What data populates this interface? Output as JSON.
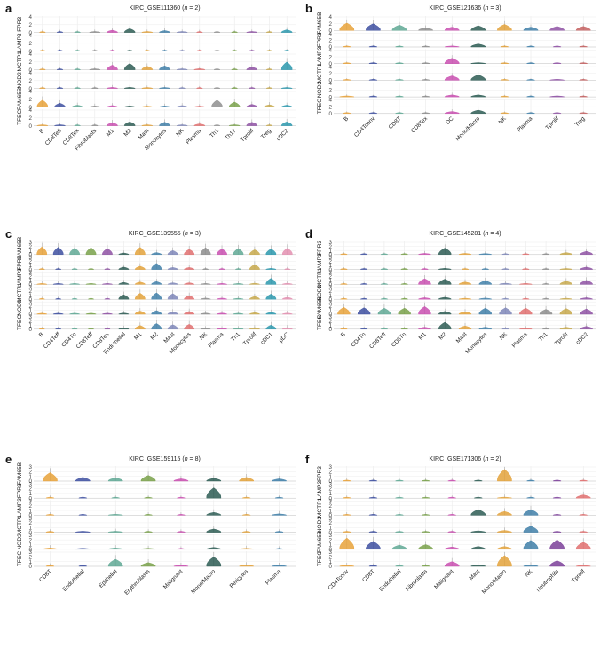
{
  "chart_data": [
    {
      "type": "violin",
      "letter": "a",
      "title": "KIRC_GSE111360 (",
      "n_label": "n",
      "n_value": " = 2)",
      "genes": [
        "FPR3",
        "LAMP3",
        "MCTP1",
        "NOD2",
        "FAM65B",
        "TFEC"
      ],
      "yticks": [
        [
          "0",
          "2",
          "4"
        ],
        [
          "0",
          "2",
          "4"
        ],
        [
          "0",
          "2",
          "4"
        ],
        [
          "0",
          "2",
          "4"
        ],
        [
          "0",
          "2",
          "4"
        ],
        [
          "0",
          "2",
          "4"
        ]
      ],
      "categories": [
        "B",
        "CD8Teff",
        "CD8Tex",
        "Fibroblasts",
        "M1",
        "M2",
        "Mast",
        "Monocytes",
        "NK",
        "Plasma",
        "Th1",
        "Th17",
        "Tprolif",
        "Treg",
        "cDC2"
      ],
      "colors": [
        "#e8a23a",
        "#3d4fa0",
        "#5fa894",
        "#8c8c8c",
        "#c94fb0",
        "#2d5c54",
        "#e3a23b",
        "#3f7fa8",
        "#7e86b8",
        "#e06f6f",
        "#8f8f8f",
        "#79a14a",
        "#8e51a3",
        "#c7a84b",
        "#2a98ad"
      ],
      "expr": [
        [
          0.15,
          0.15,
          0.1,
          0.2,
          0.6,
          1.0,
          0.2,
          0.5,
          0.2,
          0.15,
          0.1,
          0.1,
          0.2,
          0.1,
          0.7
        ],
        [
          0.05,
          0.05,
          0.05,
          0.05,
          0.05,
          0.05,
          0.05,
          0.05,
          0.05,
          0.05,
          0.05,
          0.05,
          0.05,
          0.05,
          0.05
        ],
        [
          0.1,
          0.1,
          0.1,
          0.2,
          1.2,
          1.6,
          0.9,
          1.0,
          0.2,
          0.3,
          0.1,
          0.1,
          0.7,
          0.1,
          2.0
        ],
        [
          0.05,
          0.05,
          0.05,
          0.1,
          0.3,
          0.3,
          0.2,
          0.2,
          0.1,
          0.1,
          0.05,
          0.05,
          0.1,
          0.05,
          0.2
        ],
        [
          1.8,
          1.0,
          0.5,
          0.3,
          0.4,
          0.3,
          0.2,
          0.3,
          0.4,
          0.2,
          1.8,
          1.3,
          0.7,
          0.6,
          0.5
        ],
        [
          0.2,
          0.2,
          0.1,
          0.1,
          0.8,
          1.0,
          0.2,
          0.9,
          0.2,
          0.5,
          0.1,
          0.2,
          0.9,
          0.1,
          1.0
        ]
      ]
    },
    {
      "type": "violin",
      "letter": "b",
      "title": "KIRC_GSE121636 (",
      "n_label": "n",
      "n_value": " = 3)",
      "genes": [
        "FAM65B",
        "FPR3",
        "LAMP3",
        "MCTP1",
        "NOD2",
        "TFEC"
      ],
      "yticks": [
        [
          "0",
          "2",
          "4"
        ],
        [
          "0",
          "2",
          "4"
        ],
        [
          "0",
          "2",
          "4"
        ],
        [
          "0",
          "2",
          "4"
        ],
        [
          "0",
          "2",
          "4"
        ],
        [
          "0",
          "2",
          "4"
        ]
      ],
      "categories": [
        "B",
        "CD4Tconv",
        "CD8T",
        "CD8Tex",
        "DC",
        "Mono/Macro",
        "NK",
        "Plasma",
        "Tprolif",
        "Treg"
      ],
      "colors": [
        "#e8a23a",
        "#3d4fa0",
        "#5fa894",
        "#8c8c8c",
        "#c94fb0",
        "#2d5c54",
        "#e3a23b",
        "#3f7fa8",
        "#8e51a3",
        "#c45f5f"
      ],
      "expr": [
        [
          2.2,
          2.0,
          1.6,
          0.8,
          1.0,
          1.4,
          1.8,
          1.0,
          1.2,
          1.2
        ],
        [
          0.05,
          0.05,
          0.05,
          0.05,
          0.3,
          0.9,
          0.05,
          0.05,
          0.05,
          0.05
        ],
        [
          0.1,
          0.1,
          0.1,
          0.1,
          1.6,
          0.2,
          0.1,
          0.05,
          0.1,
          0.1
        ],
        [
          0.1,
          0.1,
          0.1,
          0.1,
          1.3,
          1.6,
          0.1,
          0.05,
          0.2,
          0.1
        ],
        [
          0.2,
          0.1,
          0.1,
          0.1,
          0.6,
          0.6,
          0.1,
          0.1,
          0.2,
          0.1
        ],
        [
          0.1,
          0.1,
          0.1,
          0.1,
          0.6,
          1.0,
          0.1,
          0.05,
          0.1,
          0.1
        ]
      ]
    },
    {
      "type": "violin",
      "letter": "c",
      "title": "KIRC_GSE139555 (",
      "n_label": "n",
      "n_value": " = 3)",
      "genes": [
        "FAM65B",
        "FPR3",
        "LAMP3",
        "MCTP1",
        "NOD2",
        "TFEC"
      ],
      "yticks": [
        [
          "0",
          "1",
          "2",
          "3"
        ],
        [
          "0",
          "1",
          "2",
          "3"
        ],
        [
          "0",
          "1",
          "2",
          "3"
        ],
        [
          "0",
          "1",
          "2",
          "3"
        ],
        [
          "0",
          "1",
          "2",
          "3"
        ],
        [
          "0",
          "1",
          "2",
          "3"
        ]
      ],
      "categories": [
        "B",
        "CD4Teff",
        "CD4Tn",
        "CD8Teff",
        "CD8Tex",
        "Endothelial",
        "M1",
        "M2",
        "Mast",
        "Monocytes",
        "NK",
        "Plasma",
        "Th1",
        "Tprolif",
        "cDC1",
        "pDC"
      ],
      "colors": [
        "#e8a23a",
        "#3d4fa0",
        "#5fa894",
        "#79a14a",
        "#8e51a3",
        "#2d5c54",
        "#e3a23b",
        "#3f7fa8",
        "#7e86b8",
        "#e06f6f",
        "#8c8c8c",
        "#c94fb0",
        "#5fa894",
        "#c7a84b",
        "#2a98ad",
        "#e38fb0"
      ],
      "expr": [
        [
          1.9,
          1.8,
          1.6,
          1.7,
          1.5,
          0.4,
          1.8,
          0.5,
          1.0,
          1.3,
          1.7,
          1.4,
          1.5,
          1.2,
          1.4,
          1.6
        ],
        [
          0.05,
          0.05,
          0.05,
          0.05,
          0.05,
          0.6,
          0.8,
          1.5,
          0.5,
          0.5,
          0.05,
          0.05,
          0.05,
          1.2,
          0.3,
          0.1
        ],
        [
          0.2,
          0.2,
          0.2,
          0.2,
          0.2,
          0.5,
          0.6,
          0.7,
          0.4,
          0.4,
          0.2,
          0.2,
          0.2,
          0.3,
          1.5,
          0.3
        ],
        [
          0.1,
          0.1,
          0.1,
          0.1,
          0.1,
          1.1,
          1.5,
          1.6,
          1.4,
          0.9,
          0.3,
          0.3,
          0.2,
          0.7,
          1.3,
          0.5
        ],
        [
          0.2,
          0.2,
          0.2,
          0.2,
          0.2,
          0.3,
          0.8,
          0.9,
          0.6,
          0.7,
          0.3,
          0.3,
          0.2,
          0.4,
          0.5,
          0.3
        ],
        [
          0.1,
          0.1,
          0.1,
          0.1,
          0.1,
          0.3,
          0.9,
          1.4,
          1.1,
          1.2,
          0.2,
          0.2,
          0.2,
          0.4,
          1.0,
          0.4
        ]
      ]
    },
    {
      "type": "violin",
      "letter": "d",
      "title": "KIRC_GSE145281 (",
      "n_label": "n",
      "n_value": " = 4)",
      "genes": [
        "FPR3",
        "LAMP3",
        "MCTP1",
        "NOD2",
        "FAM65B",
        "TFEC"
      ],
      "yticks": [
        [
          "0",
          "1",
          "2",
          "3"
        ],
        [
          "0",
          "1",
          "2",
          "3"
        ],
        [
          "0",
          "1",
          "2",
          "3"
        ],
        [
          "0",
          "1",
          "2",
          "3"
        ],
        [
          "0",
          "1",
          "2",
          "3"
        ],
        [
          "0",
          "1",
          "2",
          "3"
        ]
      ],
      "categories": [
        "B",
        "CD4Tn",
        "CD8Teff",
        "CD8Tn",
        "M1",
        "M2",
        "Mast",
        "Monocytes",
        "NK",
        "Plasma",
        "Th1",
        "Tprolif",
        "cDC2"
      ],
      "colors": [
        "#e8a23a",
        "#3d4fa0",
        "#5fa894",
        "#79a14a",
        "#c94fb0",
        "#2d5c54",
        "#e3a23b",
        "#3f7fa8",
        "#7e86b8",
        "#e06f6f",
        "#8c8c8c",
        "#c7a84b",
        "#8e51a3"
      ],
      "expr": [
        [
          0.05,
          0.05,
          0.05,
          0.05,
          0.3,
          1.6,
          0.3,
          0.2,
          0.05,
          0.1,
          0.05,
          0.5,
          0.8
        ],
        [
          0.05,
          0.05,
          0.05,
          0.05,
          0.1,
          0.3,
          0.1,
          0.1,
          0.05,
          0.05,
          0.05,
          0.2,
          0.6
        ],
        [
          0.1,
          0.1,
          0.1,
          0.1,
          1.4,
          1.3,
          0.6,
          0.9,
          0.3,
          0.2,
          0.1,
          0.8,
          1.0
        ],
        [
          0.05,
          0.05,
          0.05,
          0.05,
          0.4,
          0.5,
          0.2,
          0.3,
          0.05,
          0.1,
          0.05,
          0.2,
          0.4
        ],
        [
          1.7,
          1.6,
          1.5,
          1.5,
          1.9,
          0.7,
          0.6,
          1.5,
          1.6,
          1.5,
          1.2,
          1.4,
          1.3
        ],
        [
          0.1,
          0.1,
          0.1,
          0.1,
          0.5,
          1.7,
          0.8,
          0.5,
          0.1,
          0.2,
          0.1,
          0.5,
          0.7
        ]
      ]
    },
    {
      "type": "violin",
      "letter": "e",
      "title": "KIRC_GSE159115 (",
      "n_label": "n",
      "n_value": " = 8)",
      "genes": [
        "FAM65B",
        "FPR3",
        "LAMP3",
        "MCTP1",
        "NOD2",
        "TFEC"
      ],
      "yticks": [
        [
          "0",
          "1",
          "2",
          "3"
        ],
        [
          "0",
          "1",
          "2",
          "3"
        ],
        [
          "0",
          "1",
          "2",
          "3"
        ],
        [
          "0",
          "1",
          "2",
          "3"
        ],
        [
          "0",
          "1",
          "2",
          "3"
        ],
        [
          "0",
          "1",
          "2",
          "3"
        ]
      ],
      "categories": [
        "CD8T",
        "Endothelial",
        "Epithelial",
        "Erythroblasts",
        "Malignant",
        "Mono/Macro",
        "Pericytes",
        "Plasma"
      ],
      "colors": [
        "#e8a23a",
        "#3d4fa0",
        "#5fa894",
        "#79a14a",
        "#c94fb0",
        "#2d5c54",
        "#e3a23b",
        "#3f7fa8"
      ],
      "expr": [
        [
          1.8,
          0.8,
          0.7,
          1.2,
          0.5,
          0.6,
          0.8,
          0.5
        ],
        [
          0.05,
          0.05,
          0.05,
          0.05,
          0.05,
          2.2,
          0.05,
          0.05
        ],
        [
          0.1,
          0.1,
          0.2,
          0.1,
          0.1,
          0.6,
          0.1,
          0.3
        ],
        [
          0.1,
          0.2,
          0.2,
          0.1,
          0.1,
          0.7,
          0.1,
          0.1
        ],
        [
          0.3,
          0.2,
          0.3,
          0.2,
          0.1,
          0.4,
          0.2,
          0.1
        ],
        [
          0.1,
          0.1,
          1.5,
          0.8,
          0.2,
          2.0,
          0.3,
          0.2
        ]
      ]
    },
    {
      "type": "violin",
      "letter": "f",
      "title": "KIRC_GSE171306 (",
      "n_label": "n",
      "n_value": " = 2)",
      "genes": [
        "FPR3",
        "LAMP3",
        "MCTP1",
        "NOD2",
        "FAM65B",
        "TFEC"
      ],
      "yticks": [
        [
          "0",
          "1",
          "2",
          "3"
        ],
        [
          "0",
          "1",
          "2",
          "3"
        ],
        [
          "0",
          "1",
          "2",
          "3"
        ],
        [
          "0",
          "1",
          "2",
          "3"
        ],
        [
          "0",
          "1",
          "2",
          "3"
        ],
        [
          "0",
          "1",
          "2",
          "3"
        ]
      ],
      "categories": [
        "CD4Tconv",
        "CD8T",
        "Endothelial",
        "Fibroblasts",
        "Malignant",
        "Mast",
        "Mono/Macro",
        "NK",
        "Neutrophils",
        "Tprolif"
      ],
      "colors": [
        "#e8a23a",
        "#3d4fa0",
        "#5fa894",
        "#79a14a",
        "#c94fb0",
        "#2d5c54",
        "#e3a23b",
        "#3f7fa8",
        "#7b3f99",
        "#e06f6f"
      ],
      "expr": [
        [
          0.05,
          0.05,
          0.05,
          0.05,
          0.05,
          0.1,
          2.5,
          0.05,
          0.05,
          0.05
        ],
        [
          0.05,
          0.05,
          0.05,
          0.05,
          0.05,
          0.05,
          0.2,
          0.05,
          0.05,
          0.7
        ],
        [
          0.1,
          0.1,
          0.1,
          0.1,
          0.1,
          1.2,
          0.8,
          1.2,
          0.1,
          0.1
        ],
        [
          0.05,
          0.05,
          0.05,
          0.05,
          0.05,
          0.3,
          0.4,
          1.3,
          0.05,
          0.05
        ],
        [
          2.4,
          1.7,
          0.9,
          1.0,
          0.5,
          0.6,
          0.6,
          1.9,
          2.0,
          1.5
        ],
        [
          0.2,
          0.1,
          0.1,
          0.1,
          1.0,
          0.3,
          2.3,
          0.3,
          1.2,
          0.2
        ]
      ]
    }
  ]
}
